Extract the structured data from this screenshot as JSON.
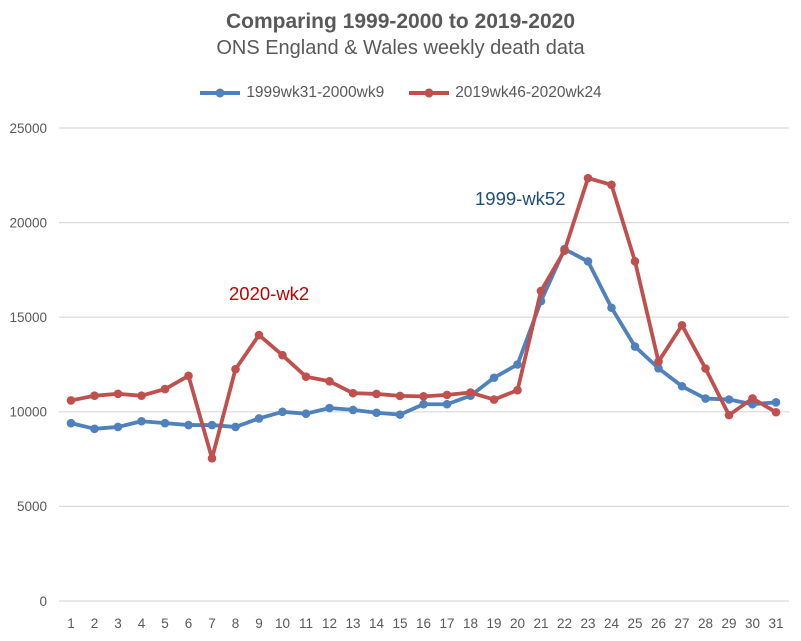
{
  "header": {
    "title": "Comparing 1999-2000 to 2019-2020",
    "subtitle": "ONS England & Wales weekly death data"
  },
  "colors": {
    "series_blue": "#4F81BD",
    "series_red": "#C0504D",
    "axis_text": "#595959",
    "gridline": "#D9D9D9"
  },
  "chart_data": {
    "type": "line",
    "title": "Comparing 1999-2000 to 2019-2020",
    "subtitle": "ONS England & Wales weekly death data",
    "xlabel": "",
    "ylabel": "",
    "x": [
      1,
      2,
      3,
      4,
      5,
      6,
      7,
      8,
      9,
      10,
      11,
      12,
      13,
      14,
      15,
      16,
      17,
      18,
      19,
      20,
      21,
      22,
      23,
      24,
      25,
      26,
      27,
      28,
      29,
      30,
      31
    ],
    "series": [
      {
        "name": "1999wk31-2000wk9",
        "color": "#4F81BD",
        "values": [
          9400,
          9100,
          9200,
          9500,
          9400,
          9300,
          9300,
          9200,
          9650,
          10000,
          9900,
          10200,
          10100,
          9950,
          9850,
          10400,
          10400,
          10850,
          11800,
          12500,
          15850,
          18600,
          17950,
          15500,
          13450,
          12300,
          11350,
          10700,
          10650,
          10400,
          10500
        ]
      },
      {
        "name": "2019wk46-2020wk24",
        "color": "#C0504D",
        "values": [
          10600,
          10850,
          10950,
          10850,
          11200,
          11900,
          7540,
          12254,
          14058,
          12990,
          11856,
          11612,
          10986,
          10944,
          10841,
          10816,
          10895,
          11019,
          10645,
          11141,
          16387,
          18516,
          22351,
          21997,
          17953,
          12657,
          14573,
          12288,
          9824,
          10709,
          9976
        ]
      }
    ],
    "ylim": [
      0,
      25000
    ],
    "yticks": [
      0,
      5000,
      10000,
      15000,
      20000,
      25000
    ],
    "ytick_labels": [
      "0",
      "5000",
      "10000",
      "15000",
      "20000",
      "25000"
    ],
    "grid": "horizontal-only",
    "legend_position": "top",
    "annotations": [
      {
        "text": "2020-wk2",
        "color": "#C00000",
        "points_to": "red series week 9 peak (2020 week 2, 14058)"
      },
      {
        "text": "1999-wk52",
        "color": "#1F4E79",
        "points_to": "blue series week 22 peak (1999 week 52, 18600)"
      }
    ]
  }
}
